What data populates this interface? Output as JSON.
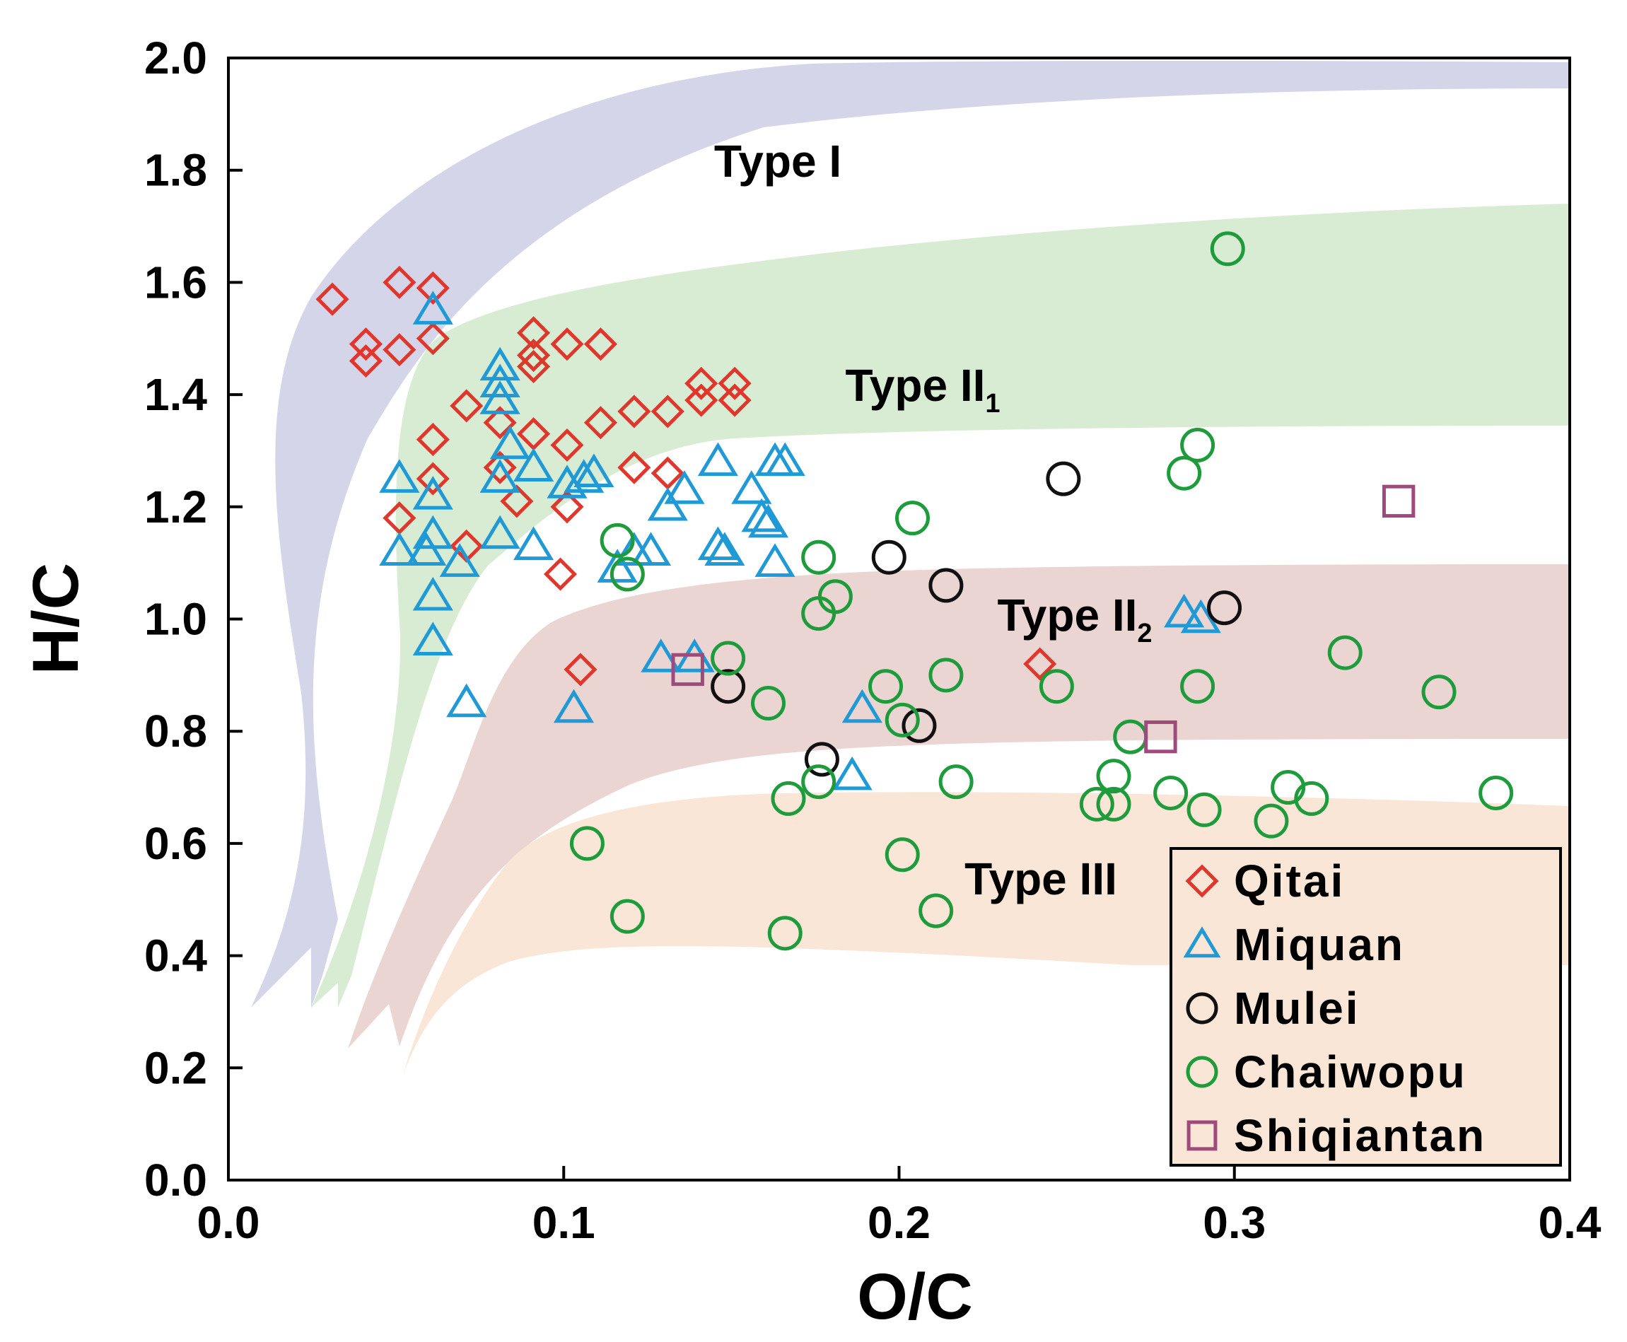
{
  "chart_data": {
    "type": "scatter",
    "xlabel": "O/C",
    "ylabel": "H/C",
    "xlim": [
      0.0,
      0.4
    ],
    "ylim": [
      0.0,
      2.0
    ],
    "x_ticks": [
      "0.0",
      "0.1",
      "0.2",
      "0.3",
      "0.4"
    ],
    "y_ticks": [
      "0.0",
      "0.2",
      "0.4",
      "0.6",
      "0.8",
      "1.0",
      "1.2",
      "1.4",
      "1.6",
      "1.8",
      "2.0"
    ],
    "grid": false,
    "legend_position": "bottom-right",
    "regions": [
      {
        "label": "Type I",
        "sub": "",
        "color": "#d4d5e8"
      },
      {
        "label": "Type II",
        "sub": "1",
        "color": "#d8ecd3"
      },
      {
        "label": "Type II",
        "sub": "2",
        "color": "#ead5d3"
      },
      {
        "label": "Type III",
        "sub": "",
        "color": "#fae6d6"
      }
    ],
    "series": [
      {
        "name": "Qitai",
        "marker": "diamond",
        "color": "#e0362c",
        "points": [
          [
            0.031,
            1.57
          ],
          [
            0.041,
            1.49
          ],
          [
            0.041,
            1.46
          ],
          [
            0.051,
            1.6
          ],
          [
            0.051,
            1.48
          ],
          [
            0.061,
            1.59
          ],
          [
            0.061,
            1.5
          ],
          [
            0.061,
            1.32
          ],
          [
            0.061,
            1.25
          ],
          [
            0.051,
            1.18
          ],
          [
            0.071,
            1.13
          ],
          [
            0.071,
            1.38
          ],
          [
            0.081,
            1.35
          ],
          [
            0.091,
            1.51
          ],
          [
            0.091,
            1.47
          ],
          [
            0.091,
            1.45
          ],
          [
            0.091,
            1.33
          ],
          [
            0.101,
            1.49
          ],
          [
            0.111,
            1.49
          ],
          [
            0.111,
            1.35
          ],
          [
            0.101,
            1.31
          ],
          [
            0.121,
            1.37
          ],
          [
            0.131,
            1.37
          ],
          [
            0.141,
            1.42
          ],
          [
            0.141,
            1.39
          ],
          [
            0.151,
            1.42
          ],
          [
            0.151,
            1.39
          ],
          [
            0.121,
            1.27
          ],
          [
            0.131,
            1.26
          ],
          [
            0.081,
            1.27
          ],
          [
            0.086,
            1.21
          ],
          [
            0.101,
            1.2
          ],
          [
            0.099,
            1.08
          ],
          [
            0.105,
            0.91
          ],
          [
            0.242,
            0.92
          ]
        ]
      },
      {
        "name": "Miquan",
        "marker": "triangle",
        "color": "#1f9ad6",
        "points": [
          [
            0.061,
            1.55
          ],
          [
            0.081,
            1.45
          ],
          [
            0.081,
            1.42
          ],
          [
            0.081,
            1.39
          ],
          [
            0.084,
            1.31
          ],
          [
            0.091,
            1.27
          ],
          [
            0.081,
            1.25
          ],
          [
            0.051,
            1.25
          ],
          [
            0.061,
            1.22
          ],
          [
            0.061,
            1.15
          ],
          [
            0.051,
            1.12
          ],
          [
            0.059,
            1.12
          ],
          [
            0.069,
            1.1
          ],
          [
            0.061,
            1.04
          ],
          [
            0.061,
            0.96
          ],
          [
            0.071,
            0.85
          ],
          [
            0.081,
            1.15
          ],
          [
            0.091,
            1.13
          ],
          [
            0.101,
            1.24
          ],
          [
            0.106,
            1.25
          ],
          [
            0.109,
            1.26
          ],
          [
            0.116,
            1.09
          ],
          [
            0.121,
            1.12
          ],
          [
            0.126,
            1.12
          ],
          [
            0.131,
            1.2
          ],
          [
            0.136,
            1.23
          ],
          [
            0.146,
            1.13
          ],
          [
            0.146,
            1.28
          ],
          [
            0.148,
            1.12
          ],
          [
            0.156,
            1.23
          ],
          [
            0.159,
            1.18
          ],
          [
            0.161,
            1.17
          ],
          [
            0.163,
            1.1
          ],
          [
            0.163,
            1.28
          ],
          [
            0.166,
            1.28
          ],
          [
            0.103,
            0.84
          ],
          [
            0.129,
            0.93
          ],
          [
            0.139,
            0.93
          ],
          [
            0.189,
            0.84
          ],
          [
            0.186,
            0.72
          ],
          [
            0.285,
            1.01
          ],
          [
            0.29,
            1.0
          ]
        ]
      },
      {
        "name": "Mulei",
        "marker": "circle",
        "color": "#111111",
        "points": [
          [
            0.249,
            1.25
          ],
          [
            0.197,
            1.11
          ],
          [
            0.214,
            1.06
          ],
          [
            0.297,
            1.02
          ],
          [
            0.149,
            0.88
          ],
          [
            0.206,
            0.81
          ],
          [
            0.177,
            0.75
          ]
        ]
      },
      {
        "name": "Chaiwopu",
        "marker": "circle",
        "color": "#1e9b3b",
        "points": [
          [
            0.298,
            1.66
          ],
          [
            0.289,
            1.31
          ],
          [
            0.285,
            1.26
          ],
          [
            0.204,
            1.18
          ],
          [
            0.116,
            1.14
          ],
          [
            0.119,
            1.08
          ],
          [
            0.176,
            1.11
          ],
          [
            0.181,
            1.04
          ],
          [
            0.176,
            1.01
          ],
          [
            0.149,
            0.93
          ],
          [
            0.161,
            0.85
          ],
          [
            0.196,
            0.88
          ],
          [
            0.201,
            0.82
          ],
          [
            0.214,
            0.9
          ],
          [
            0.247,
            0.88
          ],
          [
            0.289,
            0.88
          ],
          [
            0.333,
            0.94
          ],
          [
            0.361,
            0.87
          ],
          [
            0.269,
            0.79
          ],
          [
            0.264,
            0.72
          ],
          [
            0.259,
            0.67
          ],
          [
            0.264,
            0.67
          ],
          [
            0.281,
            0.69
          ],
          [
            0.291,
            0.66
          ],
          [
            0.316,
            0.7
          ],
          [
            0.323,
            0.68
          ],
          [
            0.311,
            0.64
          ],
          [
            0.378,
            0.69
          ],
          [
            0.217,
            0.71
          ],
          [
            0.176,
            0.71
          ],
          [
            0.167,
            0.68
          ],
          [
            0.201,
            0.58
          ],
          [
            0.211,
            0.48
          ],
          [
            0.107,
            0.6
          ],
          [
            0.119,
            0.47
          ],
          [
            0.166,
            0.44
          ]
        ]
      },
      {
        "name": "Shiqiantan",
        "marker": "square",
        "color": "#9e4a7c",
        "points": [
          [
            0.349,
            1.21
          ],
          [
            0.278,
            0.79
          ],
          [
            0.137,
            0.91
          ]
        ]
      }
    ]
  }
}
